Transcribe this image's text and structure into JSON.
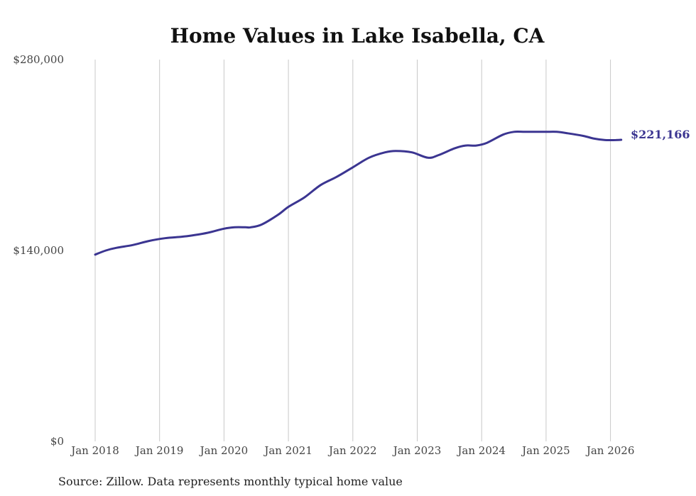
{
  "chart_data": {
    "type": "line",
    "title": "Home Values in Lake Isabella, CA",
    "xlabel": "",
    "ylabel": "",
    "ylim": [
      0,
      280000
    ],
    "y_ticks": [
      {
        "value": 0,
        "label": "$0"
      },
      {
        "value": 140000,
        "label": "$140,000"
      },
      {
        "value": 280000,
        "label": "$280,000"
      }
    ],
    "x_ticks": [
      {
        "value": 2018.0,
        "label": "Jan 2018"
      },
      {
        "value": 2019.0,
        "label": "Jan 2019"
      },
      {
        "value": 2020.0,
        "label": "Jan 2020"
      },
      {
        "value": 2021.0,
        "label": "Jan 2021"
      },
      {
        "value": 2022.0,
        "label": "Jan 2022"
      },
      {
        "value": 2023.0,
        "label": "Jan 2023"
      },
      {
        "value": 2024.0,
        "label": "Jan 2024"
      },
      {
        "value": 2025.0,
        "label": "Jan 2025"
      },
      {
        "value": 2026.0,
        "label": "Jan 2026"
      }
    ],
    "xlim": [
      2018.0,
      2026.2
    ],
    "grid": "vertical",
    "series": [
      {
        "name": "Typical home value",
        "color": "#3b3591",
        "x": [
          2018.0,
          2018.1667,
          2018.3333,
          2018.5833,
          2018.8333,
          2019.0833,
          2019.3333,
          2019.5,
          2019.75,
          2020.0,
          2020.1667,
          2020.3333,
          2020.4167,
          2020.5833,
          2020.8333,
          2021.0,
          2021.25,
          2021.5,
          2021.75,
          2022.0,
          2022.25,
          2022.5,
          2022.6667,
          2022.9167,
          2023.1667,
          2023.3333,
          2023.5833,
          2023.75,
          2023.9167,
          2024.0833,
          2024.3333,
          2024.5,
          2024.6667,
          2024.8333,
          2025.0,
          2025.1667,
          2025.3333,
          2025.5833,
          2025.75,
          2025.9167,
          2026.0833,
          2026.1667
        ],
        "values": [
          137000,
          140000,
          142000,
          144000,
          147000,
          149000,
          150000,
          151000,
          153000,
          156000,
          157000,
          157000,
          157000,
          159000,
          166000,
          172000,
          179000,
          188000,
          194000,
          201000,
          208000,
          212000,
          213000,
          212000,
          208000,
          210000,
          215000,
          217000,
          217000,
          219000,
          225000,
          227000,
          227000,
          227000,
          227000,
          227000,
          226000,
          224000,
          222000,
          221000,
          221000,
          221166
        ]
      }
    ],
    "end_label": "$221,166"
  },
  "source_text": "Source: Zillow. Data represents monthly typical home value"
}
